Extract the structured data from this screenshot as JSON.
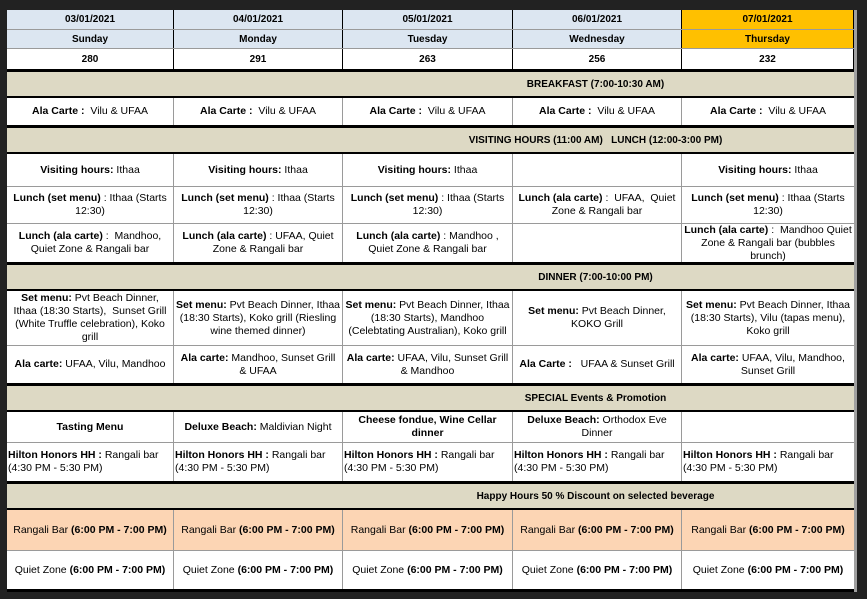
{
  "colors": {
    "header_bg": "#dce6f1",
    "highlight": "#ffc000",
    "section_bg": "#ddd9c4",
    "happy_hour_bg": "#fcd5b4"
  },
  "days": [
    {
      "date": "03/01/2021",
      "day": "Sunday",
      "count": "280"
    },
    {
      "date": "04/01/2021",
      "day": "Monday",
      "count": "291"
    },
    {
      "date": "05/01/2021",
      "day": "Tuesday",
      "count": "263"
    },
    {
      "date": "06/01/2021",
      "day": "Wednesday",
      "count": "256"
    },
    {
      "date": "07/01/2021",
      "day": "Thursday",
      "count": "232",
      "highlighted": true
    }
  ],
  "sections": [
    {
      "title": "BREAKFAST (7:00-10:30 AM)",
      "rows": [
        {
          "h": 27,
          "cells": [
            {
              "label": "Ala Carte :",
              "text": "  Vilu & UFAA"
            },
            {
              "label": "Ala Carte :",
              "text": "  Vilu & UFAA"
            },
            {
              "label": "Ala Carte :",
              "text": "  Vilu & UFAA"
            },
            {
              "label": "Ala Carte :",
              "text": "  Vilu & UFAA"
            },
            {
              "label": "Ala Carte :",
              "text": "  Vilu & UFAA"
            }
          ]
        }
      ]
    },
    {
      "title": "VISITING HOURS (11:00 AM)   LUNCH (12:00-3:00 PM)",
      "rows": [
        {
          "h": 32,
          "cells": [
            {
              "label": "Visiting hours:",
              "text": " Ithaa"
            },
            {
              "label": "Visiting hours:",
              "text": " Ithaa"
            },
            {
              "label": "Visiting hours:",
              "text": " Ithaa"
            },
            {
              "label": "",
              "text": ""
            },
            {
              "label": "Visiting hours:",
              "text": " Ithaa"
            }
          ]
        },
        {
          "h": 36,
          "cells": [
            {
              "label": "Lunch (set menu)",
              "text": " : Ithaa (Starts 12:30)"
            },
            {
              "label": "Lunch (set menu)",
              "text": " : Ithaa (Starts 12:30)"
            },
            {
              "label": "Lunch (set menu)",
              "text": " : Ithaa (Starts 12:30)"
            },
            {
              "label": "Lunch (ala carte)",
              "text": " :  UFAA,  Quiet Zone & Rangali bar"
            },
            {
              "label": "Lunch (set menu)",
              "text": " : Ithaa (Starts 12:30)"
            }
          ]
        },
        {
          "h": 38,
          "cells": [
            {
              "label": "Lunch (ala carte)",
              "text": " :  Mandhoo, Quiet Zone & Rangali bar"
            },
            {
              "label": "Lunch (ala carte)",
              "text": " : UFAA, Quiet Zone & Rangali bar"
            },
            {
              "label": "Lunch (ala carte)",
              "text": " : Mandhoo , Quiet Zone & Rangali bar"
            },
            {
              "label": "",
              "text": ""
            },
            {
              "label": "Lunch (ala carte)",
              "text": " :  Mandhoo Quiet Zone & Rangali bar (bubbles brunch)"
            }
          ]
        }
      ]
    },
    {
      "title": "DINNER (7:00-10:00 PM)",
      "rows": [
        {
          "h": 54,
          "cells": [
            {
              "label": "Set menu:",
              "text": " Pvt Beach Dinner, Ithaa (18:30 Starts),  Sunset Grill (White Truffle celebration), Koko grill"
            },
            {
              "label": "Set menu:",
              "text": " Pvt Beach Dinner, Ithaa (18:30 Starts), Koko grill (Riesling wine themed dinner)"
            },
            {
              "label": "Set menu:",
              "text": " Pvt Beach Dinner, Ithaa (18:30 Starts), Mandhoo (Celebtating Australian), Koko grill"
            },
            {
              "label": "Set menu:",
              "text": " Pvt Beach Dinner, KOKO Grill"
            },
            {
              "label": "Set menu:",
              "text": " Pvt Beach Dinner, Ithaa (18:30 Starts), Vilu (tapas menu), Koko grill"
            }
          ]
        },
        {
          "h": 37,
          "cells": [
            {
              "label": "Ala carte:",
              "text": " UFAA, Vilu, Mandhoo"
            },
            {
              "label": "Ala carte:",
              "text": " Mandhoo, Sunset Grill & UFAA"
            },
            {
              "label": "Ala carte:",
              "text": " UFAA, Vilu, Sunset Grill & Mandhoo"
            },
            {
              "label": "Ala Carte :",
              "text": "   UFAA & Sunset Grill"
            },
            {
              "label": "Ala carte:",
              "text": " UFAA, Vilu, Mandhoo, Sunset Grill"
            }
          ]
        }
      ]
    },
    {
      "title": "SPECIAL Events & Promotion",
      "rows": [
        {
          "h": 30,
          "cells": [
            {
              "label": "Tasting Menu",
              "text": ""
            },
            {
              "label": "Deluxe Beach:",
              "text": " Maldivian Night"
            },
            {
              "label": "Cheese fondue, Wine Cellar dinner",
              "text": ""
            },
            {
              "label": "Deluxe Beach:",
              "text": " Orthodox Eve Dinner"
            },
            {
              "label": "",
              "text": ""
            }
          ]
        },
        {
          "h": 38,
          "left": true,
          "cells": [
            {
              "label": "Hilton Honors HH :",
              "text": " Rangali bar (4:30 PM - 5:30 PM)"
            },
            {
              "label": "Hilton Honors HH :",
              "text": " Rangali bar (4:30 PM - 5:30 PM)"
            },
            {
              "label": "Hilton Honors HH :",
              "text": " Rangali bar (4:30 PM - 5:30 PM)"
            },
            {
              "label": "Hilton Honors HH :",
              "text": " Rangali bar (4:30 PM - 5:30 PM)"
            },
            {
              "label": "Hilton Honors HH :",
              "text": " Rangali bar (4:30 PM - 5:30 PM)"
            }
          ]
        }
      ]
    },
    {
      "title": "Happy Hours 50 % Discount on selected beverage",
      "rows": [
        {
          "h": 40,
          "orange": true,
          "cells": [
            {
              "label": "(6:00 PM - 7:00 PM)",
              "prefix": "Rangali Bar "
            },
            {
              "label": "(6:00 PM - 7:00 PM)",
              "prefix": "Rangali Bar "
            },
            {
              "label": "(6:00 PM - 7:00 PM)",
              "prefix": "Rangali Bar "
            },
            {
              "label": "(6:00 PM - 7:00 PM)",
              "prefix": "Rangali Bar "
            },
            {
              "label": "(6:00 PM - 7:00 PM)",
              "prefix": "Rangali Bar "
            }
          ]
        },
        {
          "h": 38,
          "cells": [
            {
              "label": "(6:00 PM - 7:00 PM)",
              "prefix": "Quiet Zone "
            },
            {
              "label": "(6:00 PM - 7:00 PM)",
              "prefix": "Quiet Zone "
            },
            {
              "label": "(6:00 PM - 7:00 PM)",
              "prefix": "Quiet Zone "
            },
            {
              "label": "(6:00 PM - 7:00 PM)",
              "prefix": "Quiet Zone "
            },
            {
              "label": "(6:00 PM - 7:00 PM)",
              "prefix": "Quiet Zone "
            }
          ]
        }
      ]
    }
  ]
}
